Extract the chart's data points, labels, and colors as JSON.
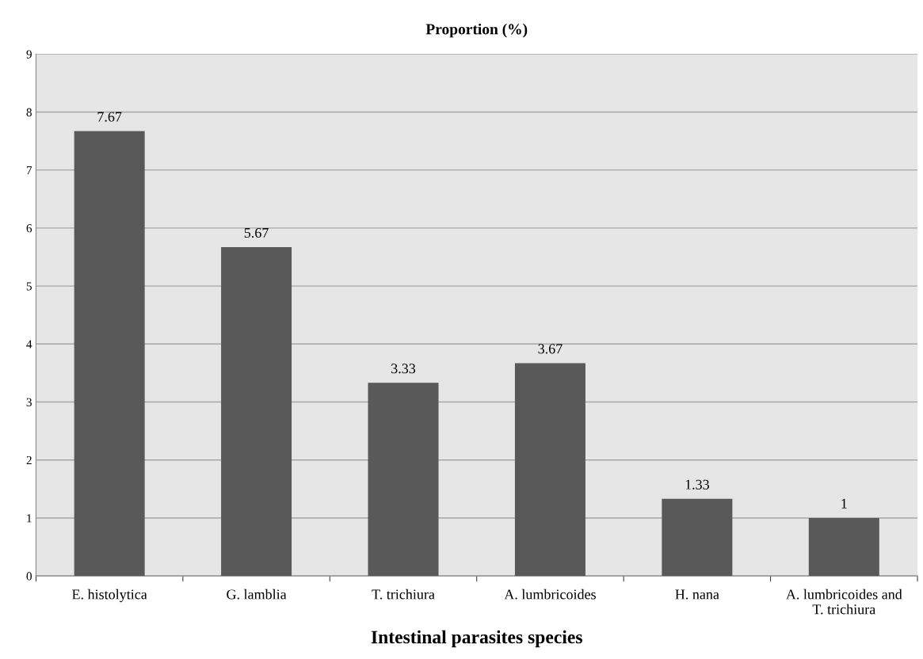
{
  "chart_data": {
    "type": "bar",
    "title": "Proportion (%)",
    "xlabel": "Intestinal parasites species",
    "categories": [
      "E. histolytica",
      "G. lamblia",
      "T. trichiura",
      "A. lumbricoides",
      "H. nana",
      "A. lumbricoides and\nT. trichiura"
    ],
    "values": [
      7.67,
      5.67,
      3.33,
      3.67,
      1.33,
      1
    ],
    "color": "#595959",
    "ylim": [
      0,
      9
    ],
    "yticks": [
      0,
      1,
      2,
      3,
      4,
      5,
      6,
      7,
      8,
      9
    ],
    "grid": "y",
    "data_labels": true,
    "legend": false
  }
}
